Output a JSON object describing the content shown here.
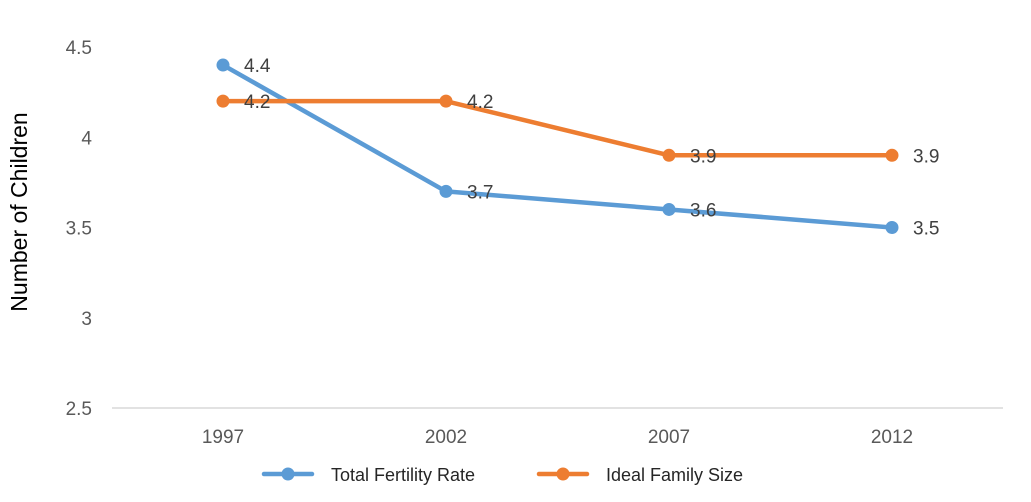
{
  "chart_data": {
    "type": "line",
    "title": "",
    "xlabel": "",
    "ylabel": "Number of Children",
    "categories": [
      "1997",
      "2002",
      "2007",
      "2012"
    ],
    "ylim": [
      2.5,
      4.5
    ],
    "yticks": [
      "2.5",
      "3",
      "3.5",
      "4",
      "4.5"
    ],
    "grid": false,
    "legend": "bottom",
    "series": [
      {
        "name": "Total Fertility Rate",
        "values": [
          4.4,
          3.7,
          3.6,
          3.5
        ],
        "labels": [
          "4.4",
          "3.7",
          "3.6",
          "3.5"
        ],
        "color": "#5B9BD5"
      },
      {
        "name": "Ideal Family Size",
        "values": [
          4.2,
          4.2,
          3.9,
          3.9
        ],
        "labels": [
          "4.2",
          "4.2",
          "3.9",
          "3.9"
        ],
        "color": "#ED7D31"
      }
    ]
  }
}
